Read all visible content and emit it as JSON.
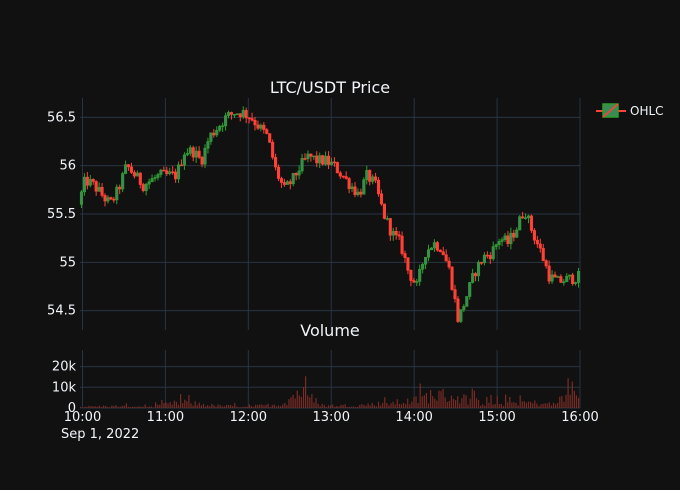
{
  "colors": {
    "background": "#111111",
    "grid": "#283442",
    "increasing": "#2ca02c",
    "increasing_fill": "#3d8a54",
    "decreasing": "#ff4136",
    "text": "#f2f5fa",
    "volume": "#7a2b25"
  },
  "chart_data": [
    {
      "type": "ohlc",
      "title": "LTC/USDT Price",
      "legend": {
        "entries": [
          "OHLC"
        ],
        "placement": "top-right"
      },
      "ylim": [
        54.3,
        56.7
      ],
      "yticks": [
        "56.5",
        "56",
        "55.5",
        "55",
        "54.5"
      ],
      "ytick_values": [
        56.5,
        56.0,
        55.5,
        55.0,
        54.5
      ],
      "xlim_hours": [
        9.97,
        16.0
      ],
      "grid": true,
      "anchors": [
        [
          9.97,
          55.6
        ],
        [
          10.05,
          55.85
        ],
        [
          10.15,
          55.8
        ],
        [
          10.25,
          55.7
        ],
        [
          10.35,
          55.6
        ],
        [
          10.45,
          55.75
        ],
        [
          10.55,
          56.0
        ],
        [
          10.65,
          55.9
        ],
        [
          10.75,
          55.8
        ],
        [
          10.85,
          55.85
        ],
        [
          10.95,
          55.9
        ],
        [
          11.05,
          55.9
        ],
        [
          11.15,
          55.9
        ],
        [
          11.25,
          56.15
        ],
        [
          11.35,
          56.15
        ],
        [
          11.45,
          56.05
        ],
        [
          11.55,
          56.3
        ],
        [
          11.65,
          56.4
        ],
        [
          11.75,
          56.5
        ],
        [
          11.85,
          56.55
        ],
        [
          11.95,
          56.55
        ],
        [
          12.05,
          56.5
        ],
        [
          12.15,
          56.4
        ],
        [
          12.25,
          56.3
        ],
        [
          12.35,
          55.95
        ],
        [
          12.45,
          55.75
        ],
        [
          12.55,
          55.85
        ],
        [
          12.65,
          56.0
        ],
        [
          12.75,
          56.1
        ],
        [
          12.85,
          56.05
        ],
        [
          12.95,
          56.05
        ],
        [
          13.05,
          56.0
        ],
        [
          13.15,
          55.9
        ],
        [
          13.25,
          55.8
        ],
        [
          13.35,
          55.7
        ],
        [
          13.45,
          55.9
        ],
        [
          13.55,
          55.8
        ],
        [
          13.65,
          55.5
        ],
        [
          13.75,
          55.3
        ],
        [
          13.85,
          55.2
        ],
        [
          13.95,
          54.9
        ],
        [
          14.05,
          54.75
        ],
        [
          14.15,
          55.1
        ],
        [
          14.25,
          55.2
        ],
        [
          14.35,
          55.15
        ],
        [
          14.45,
          54.9
        ],
        [
          14.55,
          54.4
        ],
        [
          14.65,
          54.65
        ],
        [
          14.75,
          54.9
        ],
        [
          14.85,
          55.05
        ],
        [
          14.95,
          55.1
        ],
        [
          15.05,
          55.25
        ],
        [
          15.15,
          55.2
        ],
        [
          15.25,
          55.35
        ],
        [
          15.35,
          55.55
        ],
        [
          15.45,
          55.3
        ],
        [
          15.55,
          55.1
        ],
        [
          15.65,
          54.85
        ],
        [
          15.75,
          54.8
        ],
        [
          16.0,
          54.85
        ]
      ]
    },
    {
      "type": "bar",
      "title": "Volume",
      "ylim": [
        0,
        28000
      ],
      "yticks": [
        "20k",
        "10k",
        "0"
      ],
      "ytick_values": [
        20000,
        10000,
        0
      ],
      "xticks": [
        "10:00",
        "11:00",
        "12:00",
        "13:00",
        "14:00",
        "15:00",
        "16:00"
      ],
      "xtick_hours": [
        10,
        11,
        12,
        13,
        14,
        15,
        16
      ],
      "x_date_label": "Sep 1, 2022",
      "grid": true,
      "anchors": [
        [
          10.0,
          1500
        ],
        [
          10.4,
          2200
        ],
        [
          10.8,
          1400
        ],
        [
          11.2,
          6500
        ],
        [
          11.6,
          2500
        ],
        [
          12.0,
          1800
        ],
        [
          12.4,
          4200
        ],
        [
          12.6,
          19000
        ],
        [
          12.9,
          2600
        ],
        [
          13.3,
          3000
        ],
        [
          13.7,
          5500
        ],
        [
          14.0,
          8000
        ],
        [
          14.2,
          15000
        ],
        [
          14.45,
          13500
        ],
        [
          14.8,
          6000
        ],
        [
          15.0,
          5000
        ],
        [
          15.3,
          6500
        ],
        [
          15.7,
          4000
        ],
        [
          15.88,
          25000
        ],
        [
          16.0,
          6000
        ]
      ]
    }
  ]
}
